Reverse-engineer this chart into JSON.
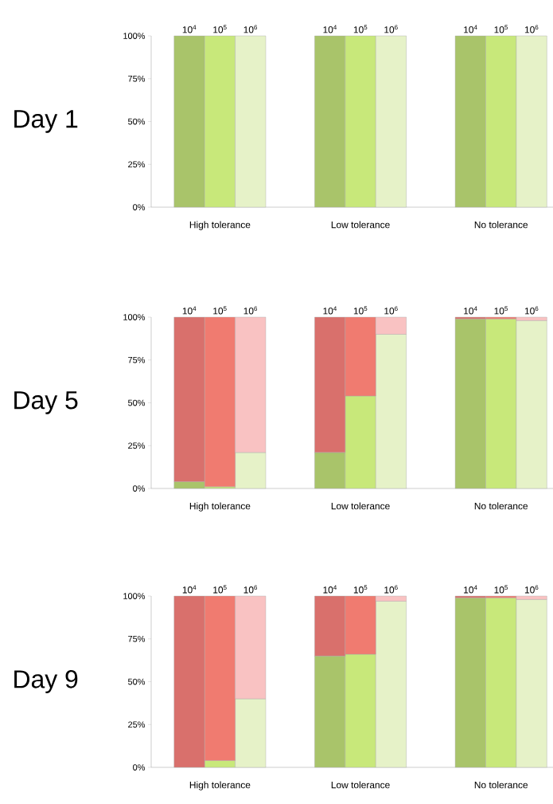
{
  "chart_data": [
    {
      "type": "bar",
      "title": "Day 1",
      "stacked": true,
      "categories": [
        "10$^{4}$",
        "10$^{5}$",
        "10$^{6}$",
        "10$^{4}$",
        "10$^{5}$",
        "10$^{6}$",
        "10$^{4}$",
        "10$^{5}$",
        "10$^{6}$"
      ],
      "series": [
        {
          "colors": [
            "#a9c46a",
            "#c8e87a",
            "#e6f2c8",
            "#a9c46a",
            "#c8e87a",
            "#e6f2c8",
            "#a9c46a",
            "#c8e87a",
            "#e6f2c8"
          ],
          "values": [
            100,
            100,
            100,
            100,
            100,
            100,
            100,
            100,
            100
          ]
        },
        {
          "colors": [
            "#d9706c",
            "#f07b70",
            "#f9c2c2",
            "#d9706c",
            "#f07b70",
            "#f9c2c2",
            "#d9706c",
            "#f07b70",
            "#f9c2c2"
          ],
          "values": [
            0,
            0,
            0,
            0,
            0,
            0,
            0,
            0,
            0
          ]
        }
      ],
      "ylim": [
        0,
        100
      ],
      "yticks": [
        {
          "value": 0,
          "label": "0%"
        },
        {
          "value": 25,
          "label": "25%"
        },
        {
          "value": 50,
          "label": "50%"
        },
        {
          "value": 75,
          "label": "75%"
        },
        {
          "value": 100,
          "label": "100%"
        }
      ],
      "annotations": [
        "High tolerance",
        "Low tolerance",
        "No tolerance"
      ]
    },
    {
      "type": "bar",
      "title": "Day 5",
      "stacked": true,
      "categories": [
        "10$^{4}$",
        "10$^{5}$",
        "10$^{6}$",
        "10$^{4}$",
        "10$^{5}$",
        "10$^{6}$",
        "10$^{4}$",
        "10$^{5}$",
        "10$^{6}$"
      ],
      "series": [
        {
          "colors": [
            "#a9c46a",
            "#c8e87a",
            "#e6f2c8",
            "#a9c46a",
            "#c8e87a",
            "#e6f2c8",
            "#a9c46a",
            "#c8e87a",
            "#e6f2c8"
          ],
          "values": [
            4,
            1,
            21,
            21,
            54,
            90,
            99,
            99,
            98
          ]
        },
        {
          "colors": [
            "#d9706c",
            "#f07b70",
            "#f9c2c2",
            "#d9706c",
            "#f07b70",
            "#f9c2c2",
            "#d9706c",
            "#f07b70",
            "#f9c2c2"
          ],
          "values": [
            96,
            99,
            79,
            79,
            46,
            10,
            1,
            1,
            2
          ]
        }
      ],
      "ylim": [
        0,
        100
      ],
      "yticks": [
        {
          "value": 0,
          "label": "0%"
        },
        {
          "value": 25,
          "label": "25%"
        },
        {
          "value": 50,
          "label": "50%"
        },
        {
          "value": 75,
          "label": "75%"
        },
        {
          "value": 100,
          "label": "100%"
        }
      ],
      "annotations": [
        "High tolerance",
        "Low tolerance",
        "No tolerance"
      ]
    },
    {
      "type": "bar",
      "title": "Day 9",
      "stacked": true,
      "categories": [
        "10$^{4}$",
        "10$^{5}$",
        "10$^{6}$",
        "10$^{4}$",
        "10$^{5}$",
        "10$^{6}$",
        "10$^{4}$",
        "10$^{5}$",
        "10$^{6}$"
      ],
      "series": [
        {
          "colors": [
            "#a9c46a",
            "#c8e87a",
            "#e6f2c8",
            "#a9c46a",
            "#c8e87a",
            "#e6f2c8",
            "#a9c46a",
            "#c8e87a",
            "#e6f2c8"
          ],
          "values": [
            0,
            4,
            40,
            65,
            66,
            97,
            99,
            99,
            98
          ]
        },
        {
          "colors": [
            "#d9706c",
            "#f07b70",
            "#f9c2c2",
            "#d9706c",
            "#f07b70",
            "#f9c2c2",
            "#d9706c",
            "#f07b70",
            "#f9c2c2"
          ],
          "values": [
            100,
            96,
            60,
            35,
            34,
            3,
            1,
            1,
            2
          ]
        }
      ],
      "ylim": [
        0,
        100
      ],
      "yticks": [
        {
          "value": 0,
          "label": "0%"
        },
        {
          "value": 25,
          "label": "25%"
        },
        {
          "value": 50,
          "label": "50%"
        },
        {
          "value": 75,
          "label": "75%"
        },
        {
          "value": 100,
          "label": "100%"
        }
      ],
      "annotations": [
        "High tolerance",
        "Low tolerance",
        "No tolerance"
      ]
    }
  ]
}
